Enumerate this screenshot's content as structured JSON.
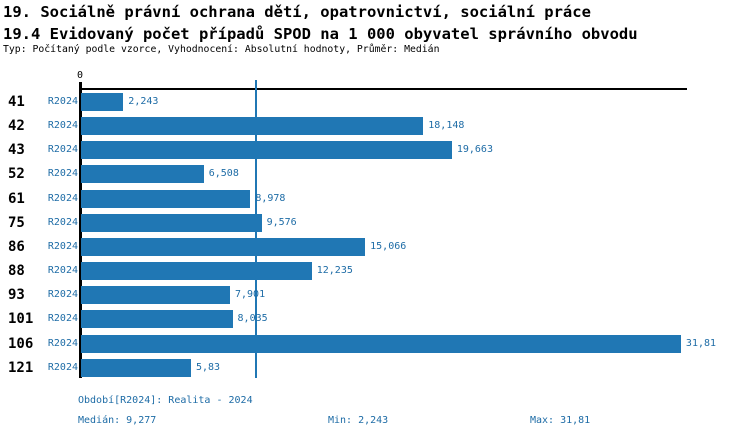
{
  "header": {
    "section_title": "19. Sociálně právní ochrana dětí, opatrovnictví, sociální práce",
    "indicator_title": "19.4 Evidovaný počet případů SPOD na 1 000 obyvatel správního obvodu",
    "meta": "Typ: Počítaný podle vzorce, Vyhodnocení: Absolutní hodnoty, Průměr: Medián"
  },
  "chart": {
    "zero_tick_label": "0",
    "rows": [
      {
        "code": "41",
        "period": "R2024",
        "value": 2.243,
        "value_label": "2,243"
      },
      {
        "code": "42",
        "period": "R2024",
        "value": 18.148,
        "value_label": "18,148"
      },
      {
        "code": "43",
        "period": "R2024",
        "value": 19.663,
        "value_label": "19,663"
      },
      {
        "code": "52",
        "period": "R2024",
        "value": 6.508,
        "value_label": "6,508"
      },
      {
        "code": "61",
        "period": "R2024",
        "value": 8.978,
        "value_label": "8,978"
      },
      {
        "code": "75",
        "period": "R2024",
        "value": 9.576,
        "value_label": "9,576"
      },
      {
        "code": "86",
        "period": "R2024",
        "value": 15.066,
        "value_label": "15,066"
      },
      {
        "code": "88",
        "period": "R2024",
        "value": 12.235,
        "value_label": "12,235"
      },
      {
        "code": "93",
        "period": "R2024",
        "value": 7.901,
        "value_label": "7,901"
      },
      {
        "code": "101",
        "period": "R2024",
        "value": 8.035,
        "value_label": "8,035"
      },
      {
        "code": "106",
        "period": "R2024",
        "value": 31.81,
        "value_label": "31,81"
      },
      {
        "code": "121",
        "period": "R2024",
        "value": 5.83,
        "value_label": "5,83"
      }
    ]
  },
  "chart_data": {
    "type": "bar",
    "orientation": "horizontal",
    "title": "19.4 Evidovaný počet případů SPOD na 1 000 obyvatel správního obvodu",
    "categories": [
      "41",
      "42",
      "43",
      "52",
      "61",
      "75",
      "86",
      "88",
      "93",
      "101",
      "106",
      "121"
    ],
    "series": [
      {
        "name": "R2024",
        "values": [
          2.243,
          18.148,
          19.663,
          6.508,
          8.978,
          9.576,
          15.066,
          12.235,
          7.901,
          8.035,
          31.81,
          5.83
        ]
      }
    ],
    "value_labels": [
      "2,243",
      "18,148",
      "19,663",
      "6,508",
      "8,978",
      "9,576",
      "15,066",
      "12,235",
      "7,901",
      "8,035",
      "31,81",
      "5,83"
    ],
    "xlabel": "",
    "ylabel": "",
    "xlim": [
      0,
      32.2
    ],
    "x_ticks": [
      0
    ],
    "grid": false,
    "legend": false,
    "median": 9.277,
    "min": 2.243,
    "max": 31.81,
    "median_line": true
  },
  "footer": {
    "period_info": "Období[R2024]: Realita - 2024",
    "median_text": "Medián: 9,277",
    "min_text": "Min: 2,243",
    "max_text": "Max: 31,81"
  },
  "colors": {
    "bar": "#2077b4",
    "median_line": "#2077b4",
    "blue_text": "#1e6ca6",
    "axis": "#000000",
    "background": "#ffffff"
  }
}
